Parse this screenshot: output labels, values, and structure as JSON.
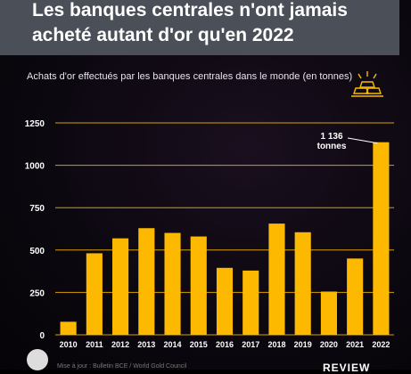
{
  "title": "Les banques centrales n'ont jamais acheté autant d'or qu'en 2022",
  "subtitle": "Achats d'or effectués par les banques centrales dans le monde (en tonnes)",
  "icons": {
    "gold": "gold-bars-icon",
    "camera": "camera-icon"
  },
  "colors": {
    "bar": "#fcb900",
    "grid": "#fcb900",
    "title_bg": "#4a4f58"
  },
  "annotation": {
    "line1": "1 136",
    "line2": "tonnes"
  },
  "footer": {
    "source": "Mise à jour : Bulletin BCE / World Gold Council",
    "brand": "REVIEW"
  },
  "chart_data": {
    "type": "bar",
    "categories": [
      "2010",
      "2011",
      "2012",
      "2013",
      "2014",
      "2015",
      "2016",
      "2017",
      "2018",
      "2019",
      "2020",
      "2021",
      "2022"
    ],
    "values": [
      77,
      481,
      569,
      629,
      601,
      580,
      395,
      379,
      656,
      605,
      255,
      450,
      1136
    ],
    "yticks": [
      0,
      250,
      500,
      750,
      1000,
      1250
    ],
    "ylim": [
      0,
      1250
    ],
    "grid": true
  }
}
